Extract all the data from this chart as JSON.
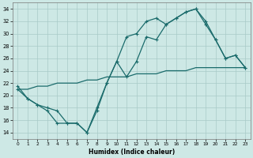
{
  "xlabel": "Humidex (Indice chaleur)",
  "bg_color": "#cde8e5",
  "line_color": "#1a6b6b",
  "grid_color": "#a8cac8",
  "xlim": [
    -0.5,
    23.5
  ],
  "ylim": [
    13,
    35
  ],
  "yticks": [
    14,
    16,
    18,
    20,
    22,
    24,
    26,
    28,
    30,
    32,
    34
  ],
  "xticks": [
    0,
    1,
    2,
    3,
    4,
    5,
    6,
    7,
    8,
    9,
    10,
    11,
    12,
    13,
    14,
    15,
    16,
    17,
    18,
    19,
    20,
    21,
    22,
    23
  ],
  "line1_x": [
    0,
    1,
    2,
    3,
    4,
    5,
    6,
    7,
    8,
    9,
    10,
    11,
    12,
    13,
    14,
    15,
    16,
    17,
    18,
    19,
    20,
    21,
    22,
    23
  ],
  "line1_y": [
    21.0,
    21.0,
    21.5,
    21.5,
    22.0,
    22.0,
    22.0,
    22.5,
    22.5,
    23.0,
    23.0,
    23.0,
    23.5,
    23.5,
    23.5,
    24.0,
    24.0,
    24.0,
    24.5,
    24.5,
    24.5,
    24.5,
    24.5,
    24.5
  ],
  "line2_x": [
    0,
    1,
    2,
    3,
    4,
    5,
    6,
    7,
    8,
    9,
    10,
    11,
    12,
    13,
    14,
    15,
    16,
    17,
    18,
    19,
    20,
    21,
    22,
    23
  ],
  "line2_y": [
    21.5,
    19.5,
    18.5,
    17.5,
    15.5,
    15.5,
    15.5,
    14.0,
    18.0,
    22.0,
    25.5,
    29.5,
    30.0,
    32.0,
    32.5,
    31.5,
    32.5,
    33.5,
    34.0,
    32.0,
    29.0,
    26.0,
    26.5,
    24.5
  ],
  "line3_x": [
    0,
    1,
    2,
    3,
    4,
    5,
    6,
    7,
    8,
    9,
    10,
    11,
    12,
    13,
    14,
    15,
    16,
    17,
    18,
    19,
    20,
    21,
    22,
    23
  ],
  "line3_y": [
    21.0,
    19.5,
    18.5,
    18.0,
    17.5,
    15.5,
    15.5,
    14.0,
    17.5,
    22.0,
    25.5,
    23.0,
    25.5,
    29.5,
    29.0,
    31.5,
    32.5,
    33.5,
    34.0,
    31.5,
    29.0,
    26.0,
    26.5,
    24.5
  ]
}
